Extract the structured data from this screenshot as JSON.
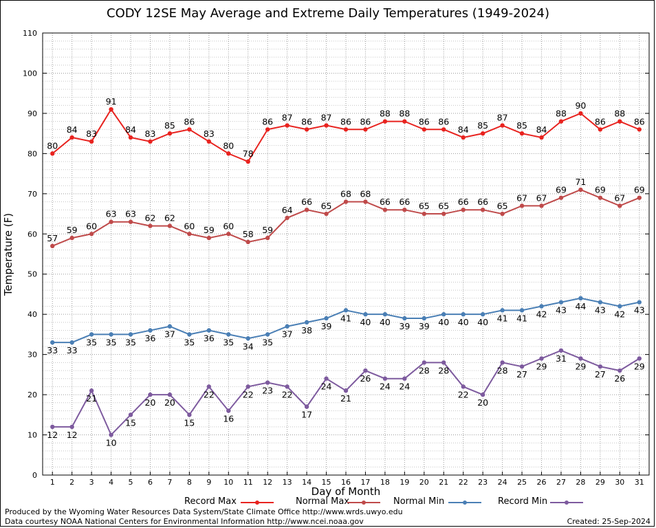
{
  "title": "CODY 12SE May Average and Extreme Daily Temperatures (1949-2024)",
  "chart_data": {
    "type": "line",
    "title": "CODY 12SE May Average and Extreme Daily Temperatures (1949-2024)",
    "xlabel": "Day of Month",
    "ylabel": "Temperature (F)",
    "x": [
      1,
      2,
      3,
      4,
      5,
      6,
      7,
      8,
      9,
      10,
      11,
      12,
      13,
      14,
      15,
      16,
      17,
      18,
      19,
      20,
      21,
      22,
      23,
      24,
      25,
      26,
      27,
      28,
      29,
      30,
      31
    ],
    "xlim": [
      0.5,
      31.5
    ],
    "ylim": [
      0,
      110
    ],
    "yticks": [
      0,
      10,
      20,
      30,
      40,
      50,
      60,
      70,
      80,
      90,
      100,
      110
    ],
    "grid": true,
    "legend_position": "bottom",
    "series": [
      {
        "name": "Record Max",
        "color": "#e8231f",
        "label_position": "above",
        "values": [
          80,
          84,
          83,
          91,
          84,
          83,
          85,
          86,
          83,
          80,
          78,
          86,
          87,
          86,
          87,
          86,
          86,
          88,
          88,
          86,
          86,
          84,
          85,
          87,
          85,
          84,
          88,
          90,
          86,
          88,
          86
        ]
      },
      {
        "name": "Normal Max",
        "color": "#bf4a4a",
        "label_position": "above",
        "values": [
          57,
          59,
          60,
          63,
          63,
          62,
          62,
          60,
          59,
          60,
          58,
          59,
          64,
          66,
          65,
          68,
          68,
          66,
          66,
          65,
          65,
          66,
          66,
          65,
          67,
          67,
          69,
          71,
          69,
          67,
          69
        ]
      },
      {
        "name": "Normal Min",
        "color": "#4a7fb5",
        "label_position": "below",
        "values": [
          33,
          33,
          35,
          35,
          35,
          36,
          37,
          35,
          36,
          35,
          34,
          35,
          37,
          38,
          39,
          41,
          40,
          40,
          39,
          39,
          40,
          40,
          40,
          41,
          41,
          42,
          43,
          44,
          43,
          42,
          43
        ]
      },
      {
        "name": "Record Min",
        "color": "#7d5a9e",
        "label_position": "below",
        "values": [
          12,
          12,
          21,
          10,
          15,
          20,
          20,
          15,
          22,
          16,
          22,
          23,
          22,
          17,
          24,
          21,
          26,
          24,
          24,
          28,
          28,
          22,
          20,
          28,
          27,
          29,
          31,
          29,
          27,
          26,
          29
        ]
      }
    ]
  },
  "footer": {
    "line1": "Produced by the Wyoming Water Resources Data System/State Climate Office http://www.wrds.uwyo.edu",
    "line2": "Data courtesy NOAA National Centers for Environmental Information http://www.ncei.noaa.gov",
    "created": "Created:  25-Sep-2024"
  }
}
